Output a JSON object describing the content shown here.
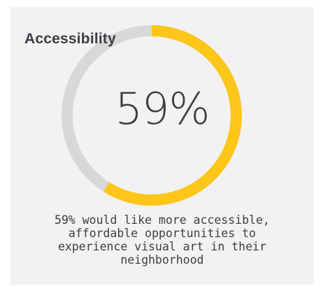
{
  "chart_data": {
    "type": "pie",
    "title": "Accessibility",
    "center_label": "59%",
    "value": 59,
    "max": 100,
    "colors": {
      "filled": "#fec619",
      "remaining": "#d7d9d8"
    },
    "caption": "59% would like more accessible, affordable opportunities to experience visual art in their neighborhood"
  }
}
